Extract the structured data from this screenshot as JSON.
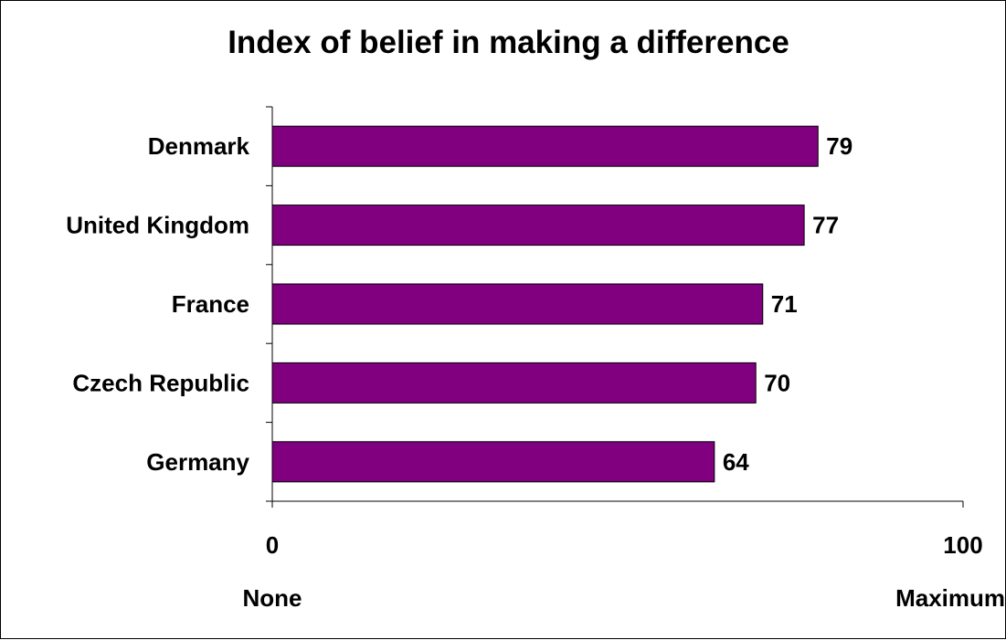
{
  "chart_data": {
    "type": "bar",
    "orientation": "horizontal",
    "title": "Index of belief in making a difference",
    "categories": [
      "Denmark",
      "United Kingdom",
      "France",
      "Czech Republic",
      "Germany"
    ],
    "values": [
      79,
      77,
      71,
      70,
      64
    ],
    "xlim": [
      0,
      100
    ],
    "x_tick_labels": [
      "0",
      "100"
    ],
    "x_end_labels": {
      "min": "None",
      "max": "Maximum"
    },
    "bar_color": "#800080",
    "grid": false,
    "legend": "none"
  }
}
